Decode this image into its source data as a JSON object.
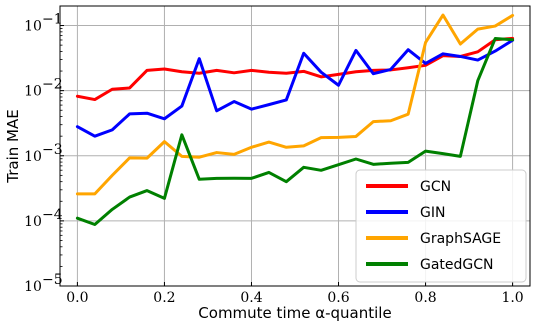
{
  "chart_data": {
    "type": "line",
    "title": "",
    "xlabel": "Commute time α-quantile",
    "ylabel": "Train MAE",
    "xlim": [
      -0.04,
      1.04
    ],
    "ylim_log10": [
      -5,
      -0.7
    ],
    "yscale": "log",
    "grid": true,
    "legend_position": "lower-right",
    "x_ticks": [
      {
        "v": 0.0,
        "label": "0.0"
      },
      {
        "v": 0.2,
        "label": "0.2"
      },
      {
        "v": 0.4,
        "label": "0.4"
      },
      {
        "v": 0.6,
        "label": "0.6"
      },
      {
        "v": 0.8,
        "label": "0.8"
      },
      {
        "v": 1.0,
        "label": "1.0"
      }
    ],
    "y_ticks": [
      {
        "v": 1e-05,
        "base": "10",
        "exp": "−5"
      },
      {
        "v": 0.0001,
        "base": "10",
        "exp": "−4"
      },
      {
        "v": 0.001,
        "base": "10",
        "exp": "−3"
      },
      {
        "v": 0.01,
        "base": "10",
        "exp": "−2"
      },
      {
        "v": 0.1,
        "base": "10",
        "exp": "−1"
      }
    ],
    "x": [
      0.0,
      0.04,
      0.08,
      0.12,
      0.16,
      0.2,
      0.24,
      0.28,
      0.32,
      0.36,
      0.4,
      0.44,
      0.48,
      0.52,
      0.56,
      0.6,
      0.64,
      0.68,
      0.72,
      0.76,
      0.8,
      0.84,
      0.88,
      0.92,
      0.96,
      1.0
    ],
    "series": [
      {
        "name": "GCN",
        "color": "#ff0000",
        "values": [
          0.0082,
          0.0073,
          0.0105,
          0.011,
          0.0205,
          0.0215,
          0.0195,
          0.0185,
          0.0205,
          0.0188,
          0.0205,
          0.0192,
          0.0185,
          0.0198,
          0.0163,
          0.0178,
          0.0195,
          0.0205,
          0.0208,
          0.0225,
          0.0245,
          0.0345,
          0.0335,
          0.0395,
          0.0605,
          0.0635
        ]
      },
      {
        "name": "GIN",
        "color": "#0000ff",
        "values": [
          0.0028,
          0.002,
          0.0025,
          0.0044,
          0.0045,
          0.0037,
          0.0058,
          0.031,
          0.0049,
          0.0068,
          0.0052,
          0.0061,
          0.0072,
          0.0375,
          0.0192,
          0.0121,
          0.0415,
          0.0182,
          0.0212,
          0.0425,
          0.0262,
          0.0368,
          0.0335,
          0.0295,
          0.0405,
          0.0595
        ]
      },
      {
        "name": "GraphSAGE",
        "color": "#ffa500",
        "values": [
          0.00026,
          0.00026,
          0.0005,
          0.00093,
          0.00092,
          0.00165,
          0.00098,
          0.00095,
          0.00112,
          0.00105,
          0.00135,
          0.00162,
          0.00135,
          0.00142,
          0.0019,
          0.00192,
          0.00198,
          0.00335,
          0.00345,
          0.00435,
          0.055,
          0.145,
          0.052,
          0.0882,
          0.0982,
          0.143
        ]
      },
      {
        "name": "GatedGCN",
        "color": "#008000",
        "values": [
          0.00011,
          8.8e-05,
          0.00015,
          0.000232,
          0.000292,
          0.000222,
          0.0021,
          0.000435,
          0.00045,
          0.000452,
          0.00045,
          0.000555,
          0.0004,
          0.000665,
          0.000598,
          0.000728,
          0.000892,
          0.000738,
          0.000768,
          0.000793,
          0.00118,
          0.00108,
          0.00098,
          0.0142,
          0.0632,
          0.0605
        ]
      }
    ]
  }
}
